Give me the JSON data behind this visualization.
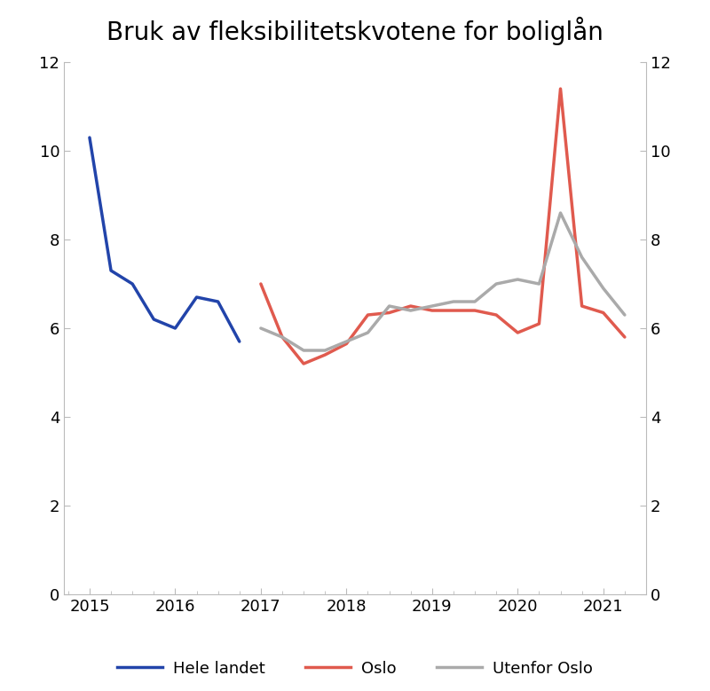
{
  "title": "Bruk av fleksibilitetskvotene for boliglån",
  "title_fontsize": 20,
  "background_color": "#ffffff",
  "ylim": [
    0,
    12
  ],
  "yticks": [
    0,
    2,
    4,
    6,
    8,
    10,
    12
  ],
  "hele_landet": {
    "x": [
      2015.0,
      2015.25,
      2015.5,
      2015.75,
      2016.0,
      2016.25,
      2016.5,
      2016.75
    ],
    "y": [
      10.3,
      7.3,
      7.0,
      6.2,
      6.0,
      6.7,
      6.6,
      5.7
    ],
    "color": "#2244aa",
    "label": "Hele landet",
    "linewidth": 2.5
  },
  "oslo": {
    "x": [
      2017.0,
      2017.25,
      2017.5,
      2017.75,
      2018.0,
      2018.25,
      2018.5,
      2018.75,
      2019.0,
      2019.25,
      2019.5,
      2019.75,
      2020.0,
      2020.25,
      2020.5,
      2020.75,
      2021.0,
      2021.25
    ],
    "y": [
      7.0,
      5.8,
      5.2,
      5.4,
      5.65,
      6.3,
      6.35,
      6.5,
      6.4,
      6.4,
      6.4,
      6.3,
      5.9,
      6.1,
      11.4,
      6.5,
      6.35,
      5.8
    ],
    "color": "#e05a4e",
    "label": "Oslo",
    "linewidth": 2.5
  },
  "utenfor_oslo": {
    "x": [
      2017.0,
      2017.25,
      2017.5,
      2017.75,
      2018.0,
      2018.25,
      2018.5,
      2018.75,
      2019.0,
      2019.25,
      2019.5,
      2019.75,
      2020.0,
      2020.25,
      2020.5,
      2020.75,
      2021.0,
      2021.25
    ],
    "y": [
      6.0,
      5.8,
      5.5,
      5.5,
      5.7,
      5.9,
      6.5,
      6.4,
      6.5,
      6.6,
      6.6,
      7.0,
      7.1,
      7.0,
      8.6,
      7.6,
      6.9,
      6.3
    ],
    "color": "#aaaaaa",
    "label": "Utenfor Oslo",
    "linewidth": 2.5
  },
  "xticks": [
    2015,
    2016,
    2017,
    2018,
    2019,
    2020,
    2021
  ],
  "xlim": [
    2014.7,
    2021.5
  ]
}
